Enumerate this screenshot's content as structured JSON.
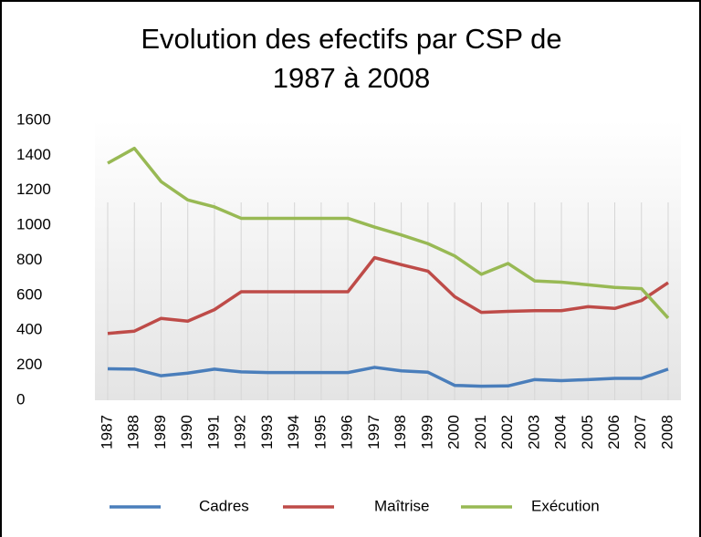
{
  "chart_data": {
    "type": "line",
    "title": [
      "Evolution  des efectifs par CSP de",
      "1987 à 2008"
    ],
    "x": [
      1987,
      1988,
      1989,
      1990,
      1991,
      1992,
      1993,
      1994,
      1995,
      1996,
      1997,
      1998,
      1999,
      2000,
      2001,
      2002,
      2003,
      2004,
      2005,
      2006,
      2007,
      2008
    ],
    "xlim": [
      1987,
      2008
    ],
    "series": [
      {
        "name": "Cadres",
        "color": "#4a7ebb",
        "values": [
          180,
          178,
          140,
          155,
          178,
          162,
          158,
          158,
          158,
          158,
          188,
          168,
          160,
          85,
          80,
          82,
          118,
          112,
          118,
          125,
          125,
          178
        ]
      },
      {
        "name": "Maîtrise",
        "color": "#be4b48",
        "values": [
          382,
          395,
          468,
          452,
          518,
          620,
          620,
          620,
          620,
          620,
          815,
          775,
          738,
          592,
          502,
          508,
          512,
          512,
          535,
          525,
          570,
          672
        ]
      },
      {
        "name": "Exécution",
        "color": "#98b954",
        "values": [
          1355,
          1440,
          1250,
          1145,
          1105,
          1040,
          1040,
          1040,
          1040,
          1040,
          990,
          945,
          895,
          825,
          720,
          782,
          682,
          675,
          660,
          645,
          638,
          470
        ]
      }
    ],
    "ylim": [
      0,
      1600
    ],
    "yticks": [
      0,
      200,
      400,
      600,
      800,
      1000,
      1200,
      1400,
      1600
    ],
    "grid": "x",
    "legend": "bottom"
  }
}
